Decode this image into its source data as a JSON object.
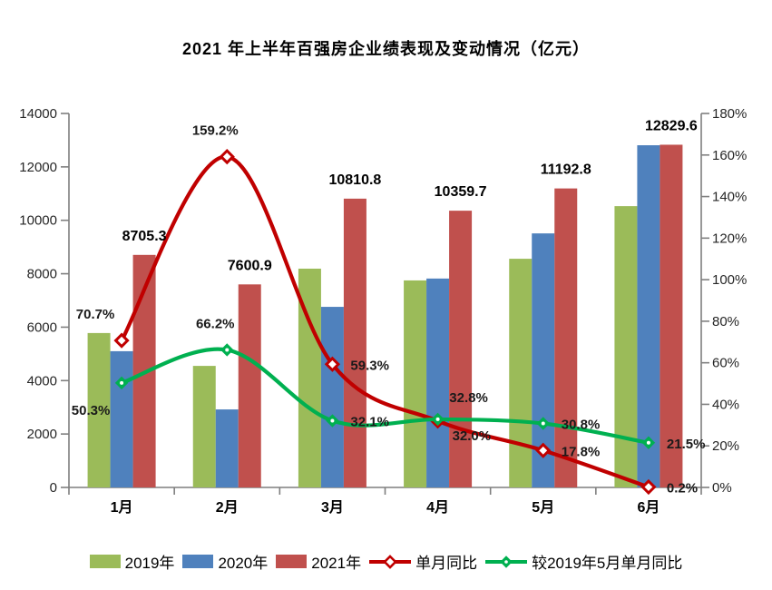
{
  "title": "2021 年上半年百强房企业绩表现及变动情况（亿元）",
  "chart_data": {
    "type": "combo-bar-line",
    "title": "2021 年上半年百强房企业绩表现及变动情况（亿元）",
    "categories": [
      "1月",
      "2月",
      "3月",
      "4月",
      "5月",
      "6月"
    ],
    "bar_series": [
      {
        "key": "2019",
        "name": "2019年",
        "color": "#9BBB59",
        "values": [
          5780,
          4550,
          8190,
          7750,
          8560,
          10530
        ]
      },
      {
        "key": "2020",
        "name": "2020年",
        "color": "#4F81BD",
        "values": [
          5100,
          2920,
          6760,
          7820,
          9510,
          12810
        ]
      },
      {
        "key": "2021",
        "name": "2021年",
        "color": "#C0504D",
        "values": [
          8705.3,
          7600.9,
          10810.8,
          10359.7,
          11192.8,
          12829.6
        ],
        "labels": [
          "8705.3",
          "7600.9",
          "10810.8",
          "10359.7",
          "11192.8",
          "12829.6"
        ]
      }
    ],
    "line_series": [
      {
        "key": "monthly-yoy",
        "name": "单月同比",
        "color": "#C00000",
        "marker": "diamond-open",
        "values": [
          70.7,
          159.2,
          59.3,
          32.0,
          17.8,
          0.2
        ],
        "labels": [
          "70.7%",
          "159.2%",
          "59.3%",
          "32.0%",
          "17.8%",
          "0.2%"
        ],
        "label_anchors": [
          "above-left",
          "above",
          "right",
          "below-right",
          "right",
          "right"
        ]
      },
      {
        "key": "vs-2019-may",
        "name": "较2019年5月单月同比",
        "color": "#00B050",
        "marker": "diamond-dot",
        "values": [
          50.3,
          66.2,
          32.1,
          32.8,
          30.8,
          21.5
        ],
        "labels": [
          "50.3%",
          "66.2%",
          "32.1%",
          "32.8%",
          "30.8%",
          "21.5%"
        ],
        "label_anchors": [
          "below-left",
          "above",
          "right",
          "above-right",
          "right",
          "right"
        ]
      }
    ],
    "left_axis": {
      "min": 0,
      "max": 14000,
      "step": 2000,
      "tick_labels": [
        "0",
        "2000",
        "4000",
        "6000",
        "8000",
        "10000",
        "12000",
        "14000"
      ]
    },
    "right_axis": {
      "min": 0,
      "max": 180,
      "step": 20,
      "tick_labels": [
        "0%",
        "20%",
        "40%",
        "60%",
        "80%",
        "100%",
        "120%",
        "140%",
        "160%",
        "180%"
      ]
    },
    "grid": false,
    "legend_position": "bottom"
  }
}
